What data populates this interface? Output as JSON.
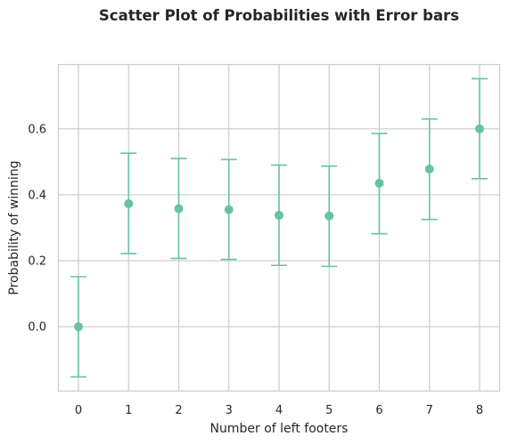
{
  "chart_data": {
    "type": "scatter",
    "title": "Scatter Plot of Probabilities with Error bars",
    "xlabel": "Number of left footers",
    "ylabel": "Probability of winning",
    "x": [
      0,
      1,
      2,
      3,
      4,
      5,
      6,
      7,
      8
    ],
    "y": [
      0.0,
      0.373,
      0.358,
      0.355,
      0.338,
      0.336,
      0.435,
      0.478,
      0.6
    ],
    "y_lower": [
      -0.152,
      0.222,
      0.207,
      0.204,
      0.186,
      0.183,
      0.282,
      0.325,
      0.449
    ],
    "y_upper": [
      0.152,
      0.526,
      0.51,
      0.507,
      0.49,
      0.487,
      0.586,
      0.63,
      0.752
    ],
    "xlim": [
      -0.4,
      8.4
    ],
    "ylim": [
      -0.195,
      0.795
    ],
    "xticks": [
      "0",
      "1",
      "2",
      "3",
      "4",
      "5",
      "6",
      "7",
      "8"
    ],
    "yticks": [
      0.0,
      0.2,
      0.4,
      0.6
    ],
    "ytick_labels": [
      "0.0",
      "0.2",
      "0.4",
      "0.6"
    ],
    "grid": true,
    "colors": {
      "marker": "#66c2a5",
      "grid": "#cccccc",
      "frame": "#cccccc",
      "text": "#262626"
    }
  }
}
